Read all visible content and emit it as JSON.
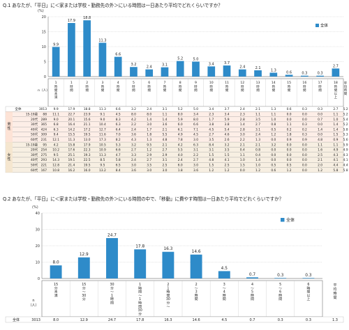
{
  "q1": {
    "title": "Q.1  あなたが、「平日」に＜家または学校・勤務先の外＞にいる時間は一日あたり平均でどれくらいですか？",
    "legend": "全体",
    "ylabel": "(%)",
    "n_header": "n（人）",
    "avg_header": "平均時間",
    "categories": [
      "1時間未満",
      "1時間",
      "2時間",
      "3時間",
      "4時間",
      "5時間",
      "6時間",
      "7時間",
      "8時間",
      "9時間",
      "10時間",
      "11時間",
      "12時間",
      "13時間",
      "14時間",
      "15時間",
      "16時間",
      "17時間",
      "18時間以上"
    ],
    "cat_short": [
      "1",
      "1",
      "2",
      "3",
      "4",
      "5",
      "6",
      "7",
      "8",
      "9",
      "10",
      "11",
      "12",
      "13",
      "14",
      "15",
      "16",
      "17",
      "18"
    ],
    "rows": [
      {
        "label": "全体",
        "group": "",
        "n": "3013",
        "vals": [
          "9.9",
          "17.9",
          "18.8",
          "11.3",
          "6.6",
          "3.2",
          "2.4",
          "3.1",
          "5.2",
          "5.0",
          "3.4",
          "3.7",
          "2.4",
          "2.1",
          "1.3",
          "0.6",
          "0.3",
          "0.3",
          "2.7"
        ],
        "avg": "5.2"
      },
      {
        "label": "15-19歳",
        "group": "男性",
        "n": "88",
        "vals": [
          "11.1",
          "22.7",
          "23.9",
          "9.1",
          "4.5",
          "8.0",
          "8.0",
          "1.1",
          "8.0",
          "3.4",
          "2.3",
          "3.4",
          "2.3",
          "1.1",
          "1.1",
          "0.0",
          "0.0",
          "0.0",
          "1.1"
        ],
        "avg": "5.2"
      },
      {
        "label": "20代",
        "group": "男性",
        "n": "289",
        "vals": [
          "9.0",
          "20.1",
          "15.6",
          "9.0",
          "8.3",
          "4.2",
          "1.4",
          "1.4",
          "5.9",
          "8.0",
          "1.7",
          "5.9",
          "2.8",
          "3.5",
          "1.0",
          "0.0",
          "0.0",
          "0.7",
          "1.0"
        ],
        "avg": "5.4"
      },
      {
        "label": "30代",
        "group": "男性",
        "n": "365",
        "vals": [
          "6.8",
          "16.4",
          "21.1",
          "10.4",
          "6.3",
          "2.2",
          "3.0",
          "3.6",
          "6.0",
          "6.6",
          "3.8",
          "3.8",
          "1.4",
          "2.7",
          "0.8",
          "1.1",
          "0.3",
          "0.0",
          "1.4"
        ],
        "avg": "5.2"
      },
      {
        "label": "40代",
        "group": "男性",
        "n": "424",
        "vals": [
          "6.3",
          "14.2",
          "17.2",
          "12.7",
          "6.4",
          "2.4",
          "1.7",
          "2.1",
          "6.1",
          "7.1",
          "4.5",
          "5.4",
          "2.8",
          "3.1",
          "0.5",
          "0.2",
          "0.2",
          "1.4",
          "1.4"
        ],
        "avg": "5.8"
      },
      {
        "label": "50代",
        "group": "男性",
        "n": "309",
        "vals": [
          "9.4",
          "15.5",
          "19.5",
          "11.6",
          "7.0",
          "3.6",
          "1.8",
          "5.5",
          "4.9",
          "4.5",
          "2.7",
          "4.6",
          "3.0",
          "2.4",
          "1.2",
          "1.8",
          "0.3",
          "0.0",
          "1.5"
        ],
        "avg": "5.3"
      },
      {
        "label": "60代",
        "group": "男性",
        "n": "231",
        "vals": [
          "12.1",
          "11.3",
          "13.0",
          "17.3",
          "8.2",
          "4.3",
          "1.3",
          "4.8",
          "7.8",
          "3.0",
          "3.5",
          "2.6",
          "2.2",
          "1.3",
          "0.0",
          "0.9",
          "0.9",
          "4.8",
          "0.9"
        ],
        "avg": "5.6"
      },
      {
        "label": "15-19歳",
        "group": "女性",
        "n": "95",
        "vals": [
          "4.2",
          "15.8",
          "17.9",
          "10.5",
          "5.3",
          "3.2",
          "9.5",
          "2.1",
          "4.2",
          "6.3",
          "8.4",
          "3.2",
          "2.1",
          "2.1",
          "3.2",
          "0.0",
          "0.0",
          "1.1",
          "1.1"
        ],
        "avg": "5.9"
      },
      {
        "label": "20代",
        "group": "女性",
        "n": "254",
        "vals": [
          "10.2",
          "17.6",
          "22.3",
          "10.9",
          "6.6",
          "2.7",
          "1.2",
          "2.7",
          "5.5",
          "3.1",
          "3.1",
          "3.5",
          "0.4",
          "0.8",
          "0.0",
          "0.0",
          "0.0",
          "1.6",
          "4.9"
        ],
        "avg": "4.9"
      },
      {
        "label": "30代",
        "group": "女性",
        "n": "275",
        "vals": [
          "9.5",
          "25.1",
          "19.3",
          "11.3",
          "4.7",
          "3.3",
          "2.9",
          "2.9",
          "4.0",
          "2.2",
          "1.5",
          "1.5",
          "1.1",
          "0.4",
          "0.0",
          "0.0",
          "0.0",
          "2.5",
          "4.3"
        ],
        "avg": "4.3"
      },
      {
        "label": "40代",
        "group": "女性",
        "n": "293",
        "vals": [
          "14.3",
          "19.1",
          "22.5",
          "8.5",
          "5.8",
          "2.4",
          "2.7",
          "3.1",
          "2.4",
          "2.7",
          "4.8",
          "4.1",
          "1.0",
          "1.4",
          "0.0",
          "0.0",
          "0.0",
          "2.1",
          "4.1"
        ],
        "avg": "4.1"
      },
      {
        "label": "50代",
        "group": "女性",
        "n": "221",
        "vals": [
          "12.8",
          "21.4",
          "19.5",
          "9.5",
          "6.5",
          "3.0",
          "3.5",
          "2.5",
          "6.0",
          "3.0",
          "1.5",
          "2.5",
          "1.5",
          "1.0",
          "0.5",
          "0.5",
          "0.0",
          "2.0",
          "4.4"
        ],
        "avg": "4.4"
      },
      {
        "label": "60代",
        "group": "女性",
        "n": "167",
        "vals": [
          "10.8",
          "16.2",
          "16.0",
          "13.2",
          "8.4",
          "3.6",
          "3.0",
          "3.0",
          "1.8",
          "3.6",
          "1.2",
          "1.2",
          "0.0",
          "1.2",
          "0.6",
          "1.2",
          "0.0",
          "1.2",
          "5.8"
        ],
        "avg": "5.8"
      }
    ]
  },
  "q2": {
    "title": "Q.2  あなたが、「平日」に＜家または学校・勤務先の外＞にいる時間の中で、「移動」に費やす時間は一日あたり平均でどれくらいですか？",
    "legend": "全体",
    "ylabel": "(%)",
    "n_header": "n（人）",
    "avg_header": "平均時間",
    "categories": [
      "15分未満",
      "15分〜30分",
      "30分〜1時間",
      "1時間〜1時間30分",
      "1時間30分〜2時間",
      "2〜3時間",
      "3〜4時間",
      "4〜5時間",
      "5〜6時間",
      "6時間以上"
    ],
    "cat_lines": [
      [
        "15",
        "分",
        "未",
        "満"
      ],
      [
        "15",
        "分",
        "〜",
        "30",
        "分"
      ],
      [
        "30",
        "分",
        "〜",
        "1",
        "時",
        "間"
      ],
      [
        "1",
        "時",
        "間",
        "〜",
        "1",
        "時",
        "間",
        "30",
        "分"
      ],
      [
        "2",
        "1",
        "時",
        "間",
        "30",
        "分",
        "〜"
      ],
      [
        "2",
        "〜",
        "3",
        "時",
        "間"
      ],
      [
        "3",
        "〜",
        "4",
        "時",
        "間"
      ],
      [
        "4",
        "〜",
        "5",
        "時",
        "間"
      ],
      [
        "5",
        "〜",
        "6",
        "時",
        "間"
      ],
      [
        "6",
        "時",
        "間",
        "以",
        "上"
      ]
    ],
    "row": {
      "label": "全体",
      "n": "3013",
      "vals": [
        "8.0",
        "12.9",
        "24.7",
        "17.8",
        "16.3",
        "14.6",
        "4.5",
        "0.7",
        "0.3",
        "0.3"
      ],
      "avg": "1.3"
    }
  },
  "chart_data": [
    {
      "type": "bar",
      "title": "Q.1  あなたが、「平日」に＜家または学校・勤務先の外＞にいる時間は一日あたり平均でどれくらいですか？",
      "categories": [
        "1時間未満",
        "1時間",
        "2時間",
        "3時間",
        "4時間",
        "5時間",
        "6時間",
        "7時間",
        "8時間",
        "9時間",
        "10時間",
        "11時間",
        "12時間",
        "13時間",
        "14時間",
        "15時間",
        "16時間",
        "17時間",
        "18時間以上"
      ],
      "series": [
        {
          "name": "全体",
          "values": [
            9.9,
            17.9,
            18.8,
            11.3,
            6.6,
            3.2,
            2.4,
            3.1,
            5.2,
            5.0,
            3.4,
            3.7,
            2.4,
            2.1,
            1.3,
            0.6,
            0.3,
            0.3,
            2.7
          ]
        }
      ],
      "ylabel": "(%)",
      "ylim": [
        0,
        20
      ],
      "yticks": [
        0,
        5,
        10,
        15,
        20
      ],
      "legend": "top-right",
      "color": "#2E8BC9"
    },
    {
      "type": "bar",
      "title": "Q.2  あなたが、「平日」に＜家または学校・勤務先の外＞にいる時間の中で、「移動」に費やす時間は一日あたり平均でどれくらいですか？",
      "categories": [
        "15分未満",
        "15分〜30分",
        "30分〜1時間",
        "1時間〜1時間30分",
        "1時間30分〜2時間",
        "2〜3時間",
        "3〜4時間",
        "4〜5時間",
        "5〜6時間",
        "6時間以上"
      ],
      "series": [
        {
          "name": "全体",
          "values": [
            8.0,
            12.9,
            24.7,
            17.8,
            16.3,
            14.6,
            4.5,
            0.7,
            0.3,
            0.3
          ]
        }
      ],
      "ylabel": "(%)",
      "ylim": [
        0,
        40
      ],
      "yticks": [
        0,
        10,
        20,
        30,
        40
      ],
      "legend": "top-right",
      "color": "#2E8BC9"
    }
  ]
}
